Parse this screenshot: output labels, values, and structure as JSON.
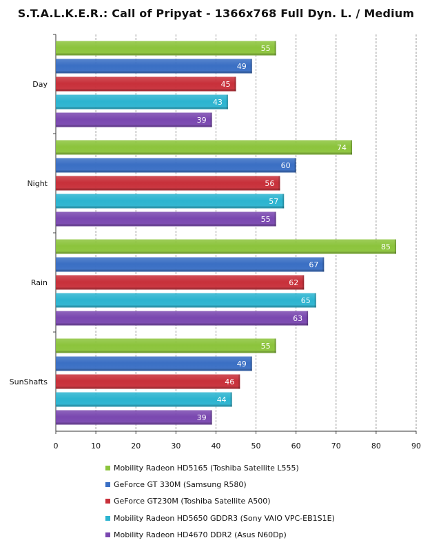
{
  "chart_data": {
    "type": "bar",
    "orientation": "horizontal",
    "title": "S.T.A.L.K.E.R.: Call of Pripyat - 1366x768 Full Dyn. L. / Medium",
    "categories": [
      "Day",
      "Night",
      "Rain",
      "SunShafts"
    ],
    "series": [
      {
        "name": "Mobility Radeon HD5165 (Toshiba Satellite L555)",
        "values": [
          55,
          74,
          85,
          55
        ],
        "color": "#8cc43c"
      },
      {
        "name": "GeForce GT 330M (Samsung R580)",
        "values": [
          49,
          60,
          67,
          49
        ],
        "color": "#3a6fc4"
      },
      {
        "name": "GeForce GT230M (Toshiba Satellite A500)",
        "values": [
          45,
          56,
          62,
          46
        ],
        "color": "#c8303a"
      },
      {
        "name": "Mobility Radeon HD5650 GDDR3 (Sony VAIO VPC-EB1S1E)",
        "values": [
          43,
          57,
          65,
          44
        ],
        "color": "#2cb4d0"
      },
      {
        "name": "Mobility Radeon HD4670 DDR2 (Asus N60Dp)",
        "values": [
          39,
          55,
          63,
          39
        ],
        "color": "#7a48b0"
      }
    ],
    "xlim": [
      0,
      90
    ],
    "x_ticks": [
      0,
      10,
      20,
      30,
      40,
      50,
      60,
      70,
      80,
      90
    ],
    "grid": true,
    "legend_position": "bottom"
  }
}
